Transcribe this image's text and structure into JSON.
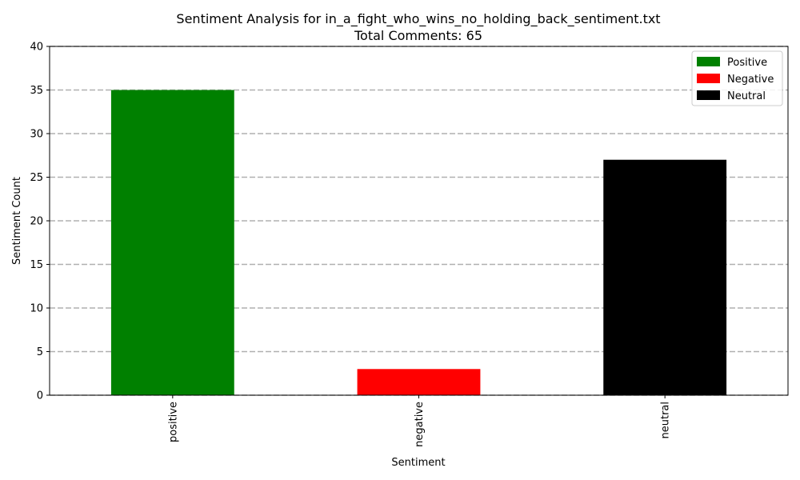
{
  "chart_data": {
    "type": "bar",
    "title": "Sentiment Analysis for in_a_fight_who_wins_no_holding_back_sentiment.txt",
    "subtitle": "Total Comments: 65",
    "xlabel": "Sentiment",
    "ylabel": "Sentiment Count",
    "categories": [
      "positive",
      "negative",
      "neutral"
    ],
    "values": [
      35,
      3,
      27
    ],
    "colors": [
      "#008000",
      "#ff0000",
      "#000000"
    ],
    "ylim": [
      0,
      40
    ],
    "yticks": [
      "0",
      "5",
      "10",
      "15",
      "20",
      "25",
      "30",
      "35",
      "40"
    ],
    "grid": "y-dashed",
    "legend": {
      "placement": "top-right",
      "entries": [
        {
          "label": "Positive",
          "color": "#008000"
        },
        {
          "label": "Negative",
          "color": "#ff0000"
        },
        {
          "label": "Neutral",
          "color": "#000000"
        }
      ]
    }
  }
}
